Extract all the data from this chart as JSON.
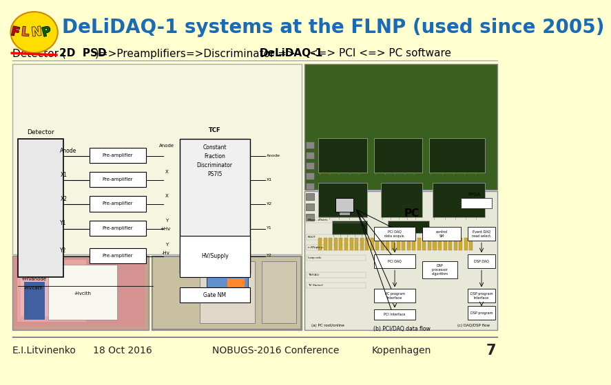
{
  "background_color": "#ffffd0",
  "title_text": "DeLiDAQ-1 systems at the FLNP (used since 2005)",
  "title_color": "#1a6bb5",
  "title_fontsize": 20,
  "subtitle_fontsize": 11,
  "footer_left": "E.I.Litvinenko",
  "footer_mid_left": "18 Oct 2016",
  "footer_mid_right": "NOBUGS-2016 Conference",
  "footer_right1": "Kopenhagen",
  "footer_right2": "7",
  "footer_fontsize": 10,
  "footer_color": "#222222",
  "logo_colors": [
    "#cc0000",
    "#ff6600",
    "#ffcc00",
    "#006600"
  ],
  "logo_letters": [
    "F",
    "L",
    "N",
    "P"
  ],
  "diag_bg": "#f5f5e0",
  "photo1_color": "#c8b898",
  "photo2_color": "#b8b8a8",
  "pcb_color": "#3a6020",
  "pcb_chip_color": "#1a3010",
  "sys_diag_bg": "#e8e8d8",
  "white": "#ffffff",
  "black": "#000000",
  "gray": "#888888",
  "lightgray": "#cccccc",
  "darkgray": "#555555"
}
